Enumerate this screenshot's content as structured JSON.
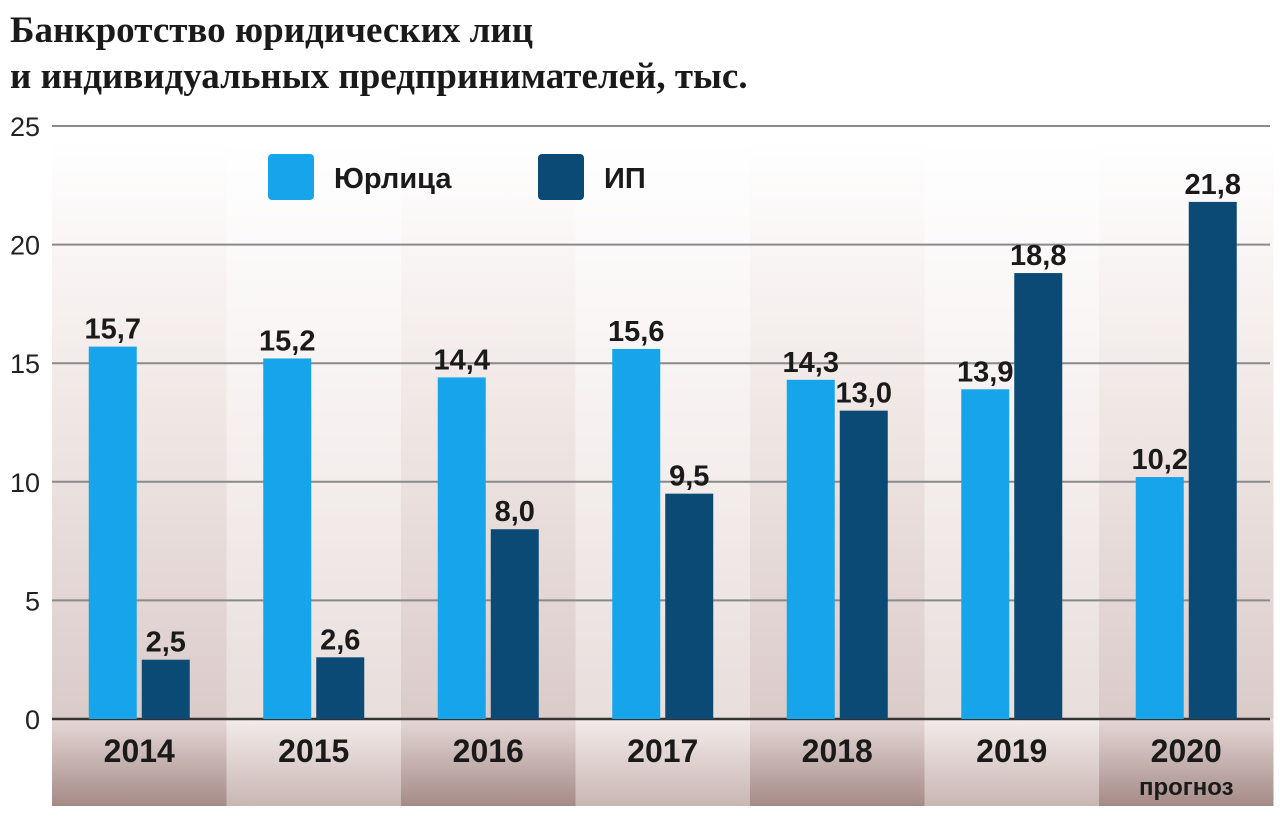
{
  "chart_data": {
    "type": "bar",
    "title_lines": [
      "Банкротство юридических лиц",
      "и индивидуальных предпринимателей, тыс."
    ],
    "categories": [
      "2014",
      "2015",
      "2016",
      "2017",
      "2018",
      "2019",
      "2020"
    ],
    "category_notes": [
      "",
      "",
      "",
      "",
      "",
      "",
      "прогноз"
    ],
    "series": [
      {
        "name": "Юрлица",
        "color": "#16a5eb",
        "values": [
          15.7,
          15.2,
          14.4,
          15.6,
          14.3,
          13.9,
          10.2
        ],
        "labels": [
          "15,7",
          "15,2",
          "14,4",
          "15,6",
          "14,3",
          "13,9",
          "10,2"
        ]
      },
      {
        "name": "ИП",
        "color": "#0a4a74",
        "values": [
          2.5,
          2.6,
          8.0,
          9.5,
          13.0,
          18.8,
          21.8
        ],
        "labels": [
          "2,5",
          "2,6",
          "8,0",
          "9,5",
          "13,0",
          "18,8",
          "21,8"
        ]
      }
    ],
    "ylim": [
      0,
      25
    ],
    "yticks": [
      0,
      5,
      10,
      15,
      20,
      25
    ],
    "grid": true,
    "legend_position": "top-left"
  }
}
